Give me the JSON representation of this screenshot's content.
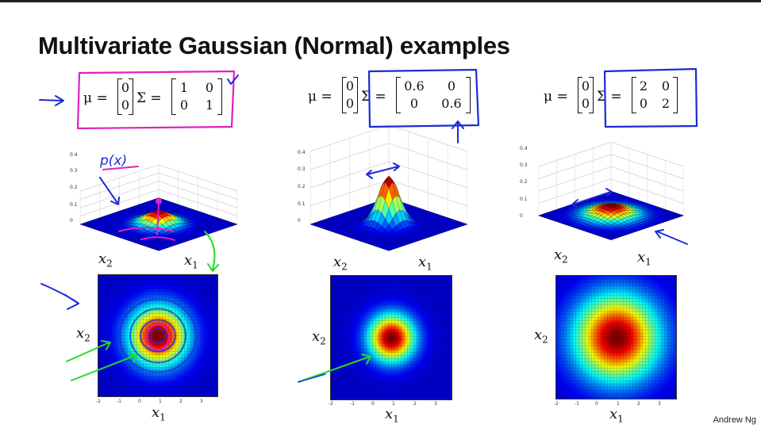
{
  "title": "Multivariate Gaussian (Normal) examples",
  "credit": "Andrew Ng",
  "examples": [
    {
      "mu": [
        "0",
        "0"
      ],
      "sigma": [
        [
          "1",
          "0"
        ],
        [
          "0",
          "1"
        ]
      ],
      "variance": 1
    },
    {
      "mu": [
        "0",
        "0"
      ],
      "sigma": [
        [
          "0.6",
          "0"
        ],
        [
          "0",
          "0.6"
        ]
      ],
      "variance": 0.6
    },
    {
      "mu": [
        "0",
        "0"
      ],
      "sigma": [
        [
          "2",
          "0"
        ],
        [
          "0",
          "2"
        ]
      ],
      "variance": 2
    }
  ],
  "eq_labels": {
    "mu": "μ =",
    "sigma": "Σ ="
  },
  "axis_labels": {
    "x1": "x",
    "x1_sub": "1",
    "x2": "x",
    "x2_sub": "2"
  },
  "surface_z_ticks": [
    "0.4",
    "0.3",
    "0.2",
    "0.1",
    "0"
  ],
  "heat_ticks": [
    "-2",
    "-1",
    "0",
    "1",
    "2",
    "3"
  ],
  "annotation": "p(x)",
  "colors": {
    "pen_pink": "#e020c0",
    "pen_blue": "#1a2bd8",
    "pen_green": "#22dd22"
  },
  "chart_data": {
    "type": "heatmap",
    "function": "bivariate normal density, mean [0,0]",
    "variances": [
      1,
      0.6,
      2
    ],
    "xlim": [
      -2,
      3
    ],
    "ylim": [
      -2,
      3
    ],
    "zlim": [
      0,
      0.4
    ]
  }
}
